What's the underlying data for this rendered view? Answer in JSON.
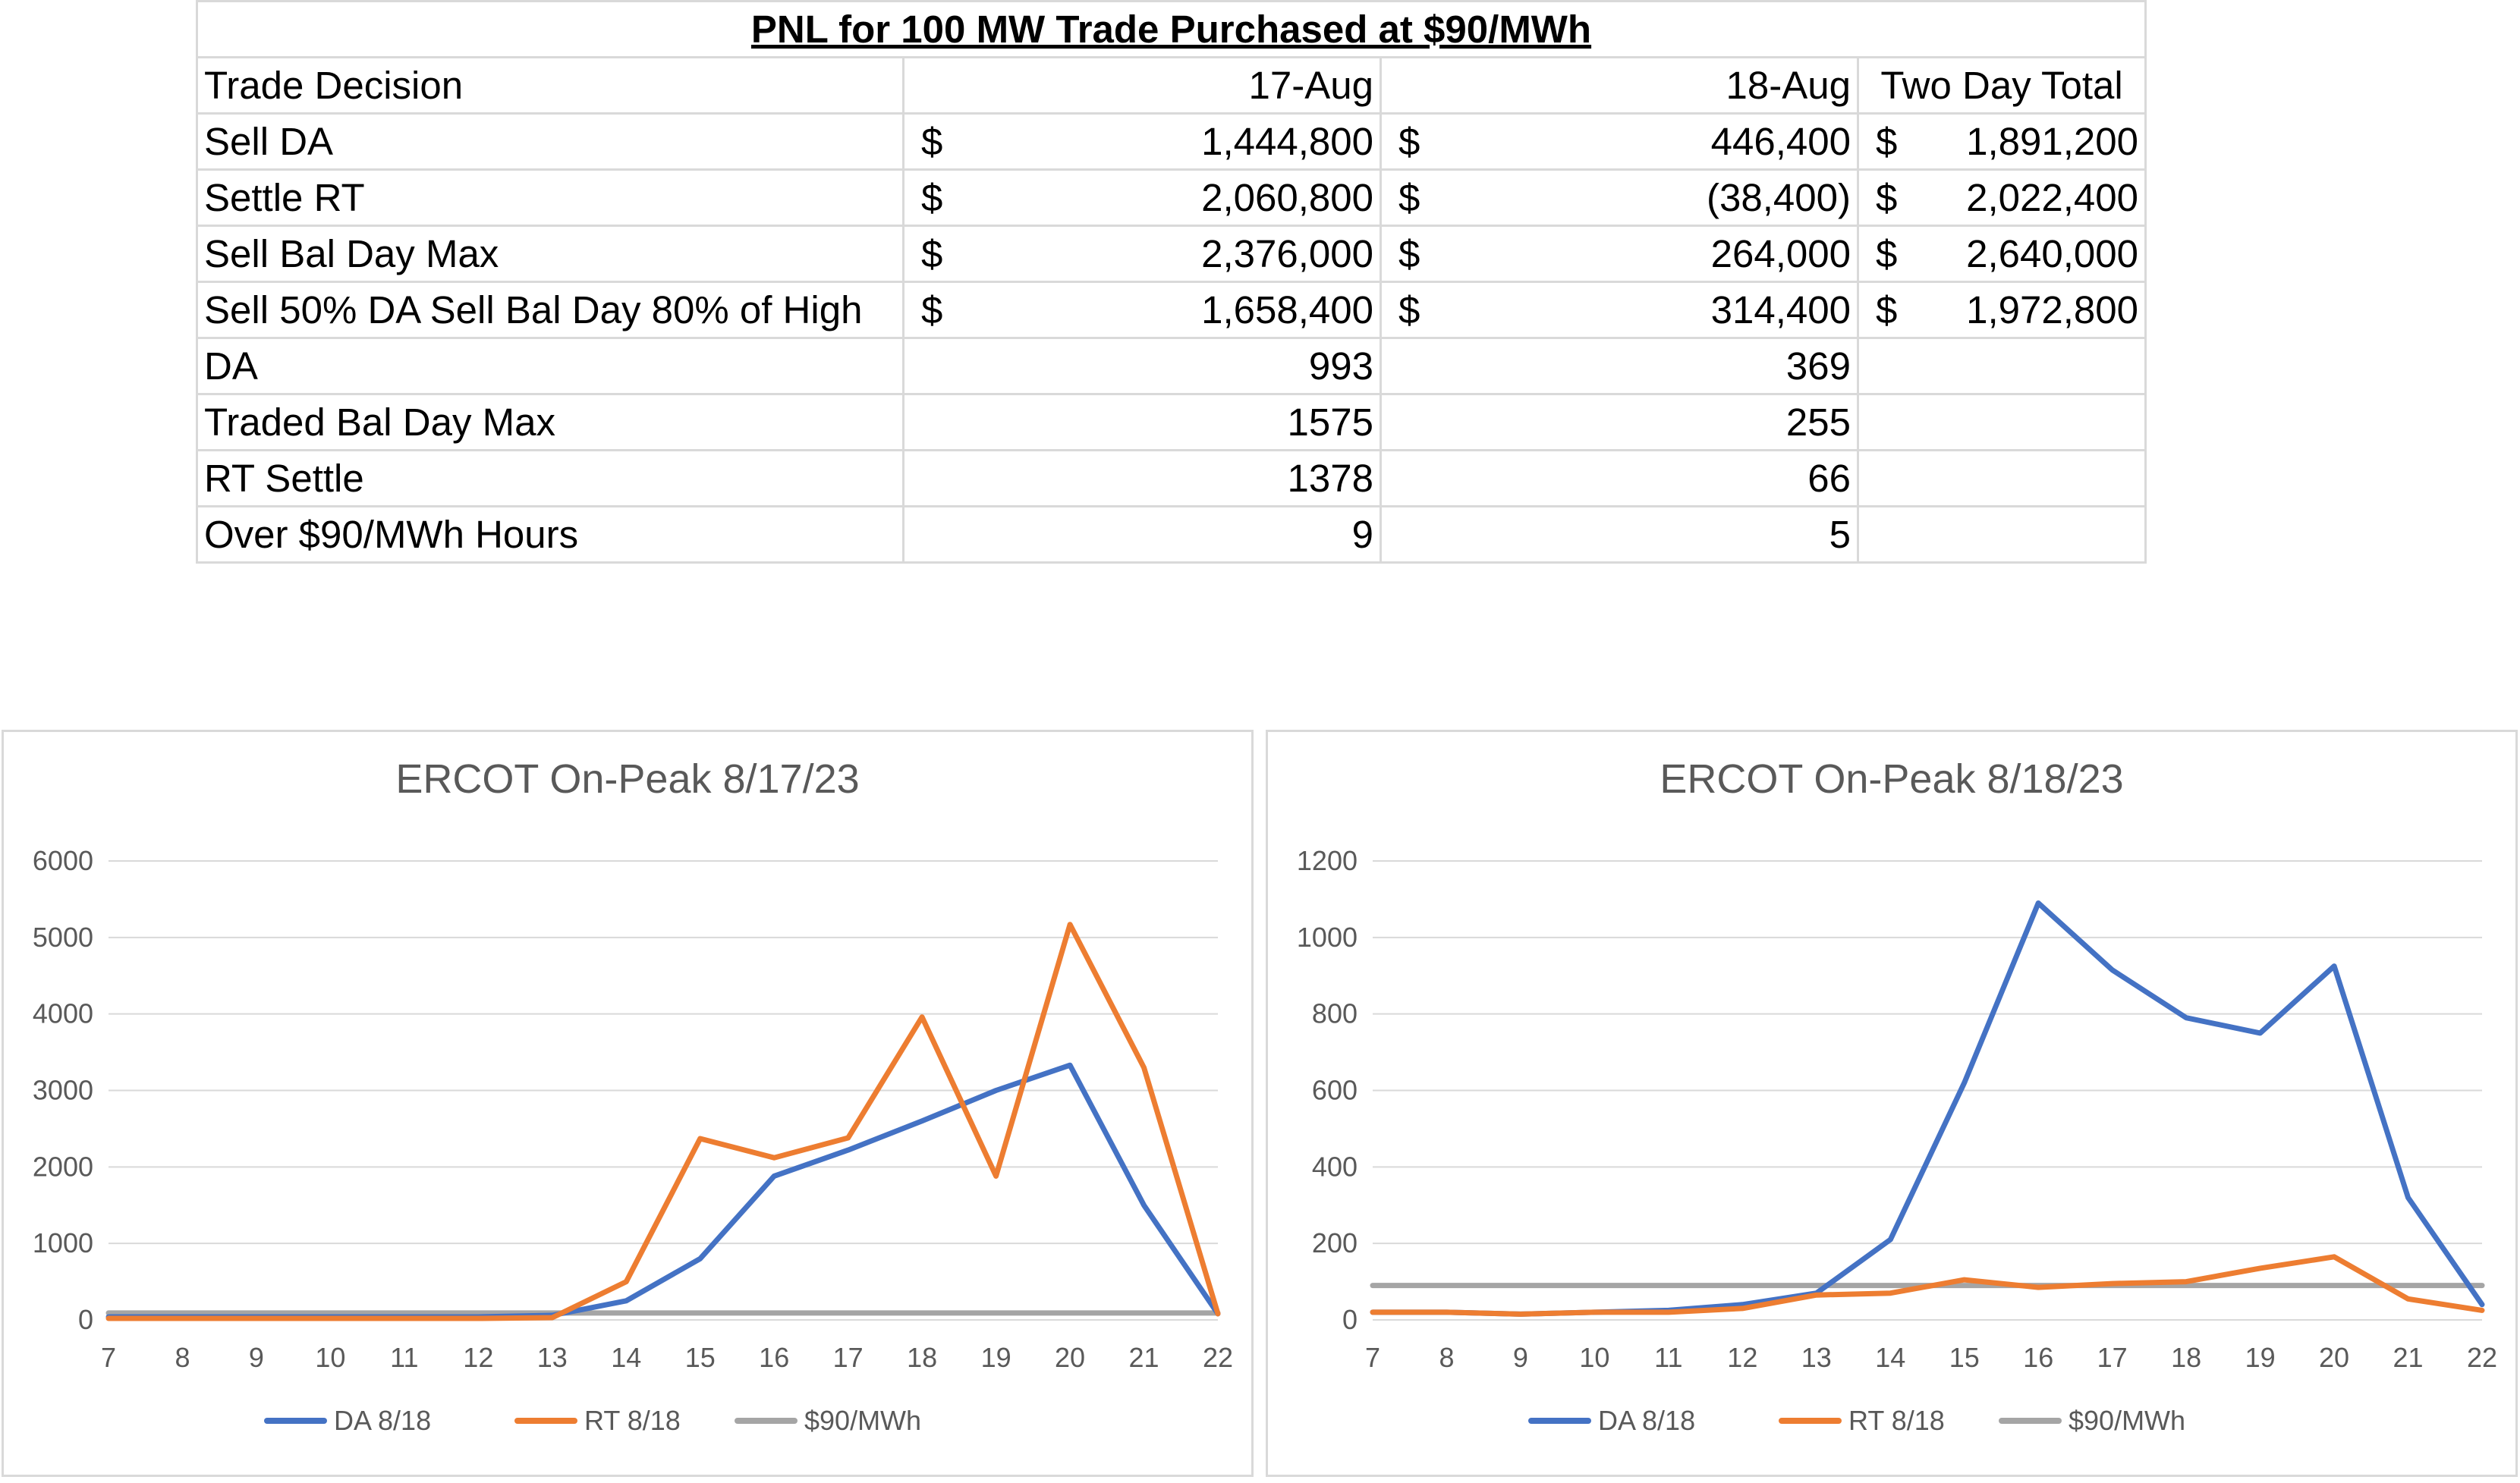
{
  "table": {
    "title": "PNL for 100 MW Trade Purchased at $90/MWh",
    "header": {
      "label": "Trade Decision",
      "col1": "17-Aug",
      "col2": "18-Aug",
      "col3": "Two Day Total"
    },
    "currency_symbol": "$",
    "money_rows": [
      {
        "label": "Sell DA",
        "v1": "1,444,800",
        "v2": "446,400",
        "v3": "1,891,200"
      },
      {
        "label": "Settle RT",
        "v1": "2,060,800",
        "v2": "(38,400)",
        "v3": "2,022,400"
      },
      {
        "label": "Sell Bal Day Max",
        "v1": "2,376,000",
        "v2": "264,000",
        "v3": "2,640,000"
      },
      {
        "label": "Sell 50% DA Sell Bal Day 80% of High",
        "v1": "1,658,400",
        "v2": "314,400",
        "v3": "1,972,800"
      }
    ],
    "stat_rows": [
      {
        "label": "DA",
        "v1": "993",
        "v2": "369"
      },
      {
        "label": "Traded Bal Day Max",
        "v1": "1575",
        "v2": "255"
      },
      {
        "label": "RT Settle",
        "v1": "1378",
        "v2": "66"
      },
      {
        "label": "Over $90/MWh Hours",
        "v1": "9",
        "v2": "5"
      }
    ]
  },
  "chart_data": [
    {
      "type": "line",
      "title": "ERCOT On-Peak 8/17/23",
      "x": [
        7,
        8,
        9,
        10,
        11,
        12,
        13,
        14,
        15,
        16,
        17,
        18,
        19,
        20,
        21,
        22
      ],
      "ylim": [
        0,
        6000
      ],
      "yticks": [
        0,
        1000,
        2000,
        3000,
        4000,
        5000,
        6000
      ],
      "grid": true,
      "legend": "bottom",
      "series": [
        {
          "name": "DA 8/18",
          "color": "#4472C4",
          "values": [
            40,
            40,
            40,
            40,
            40,
            40,
            60,
            250,
            800,
            1880,
            2220,
            2600,
            3000,
            3330,
            1500,
            80
          ]
        },
        {
          "name": "RT 8/18",
          "color": "#ED7D31",
          "values": [
            20,
            20,
            20,
            20,
            20,
            20,
            30,
            500,
            2370,
            2120,
            2380,
            3960,
            1880,
            5170,
            3300,
            80
          ]
        },
        {
          "name": "$90/MWh",
          "color": "#A5A5A5",
          "values": [
            90,
            90,
            90,
            90,
            90,
            90,
            90,
            90,
            90,
            90,
            90,
            90,
            90,
            90,
            90,
            90
          ]
        }
      ]
    },
    {
      "type": "line",
      "title": "ERCOT On-Peak 8/18/23",
      "x": [
        7,
        8,
        9,
        10,
        11,
        12,
        13,
        14,
        15,
        16,
        17,
        18,
        19,
        20,
        21,
        22
      ],
      "ylim": [
        0,
        1200
      ],
      "yticks": [
        0,
        200,
        400,
        600,
        800,
        1000,
        1200
      ],
      "grid": true,
      "legend": "bottom",
      "series": [
        {
          "name": "DA 8/18",
          "color": "#4472C4",
          "values": [
            20,
            20,
            15,
            20,
            25,
            40,
            70,
            210,
            620,
            1090,
            915,
            790,
            750,
            925,
            320,
            40
          ]
        },
        {
          "name": "RT 8/18",
          "color": "#ED7D31",
          "values": [
            20,
            20,
            15,
            20,
            20,
            30,
            65,
            70,
            105,
            85,
            95,
            100,
            135,
            165,
            55,
            25
          ]
        },
        {
          "name": "$90/MWh",
          "color": "#A5A5A5",
          "values": [
            90,
            90,
            90,
            90,
            90,
            90,
            90,
            90,
            90,
            90,
            90,
            90,
            90,
            90,
            90,
            90
          ]
        }
      ]
    }
  ]
}
